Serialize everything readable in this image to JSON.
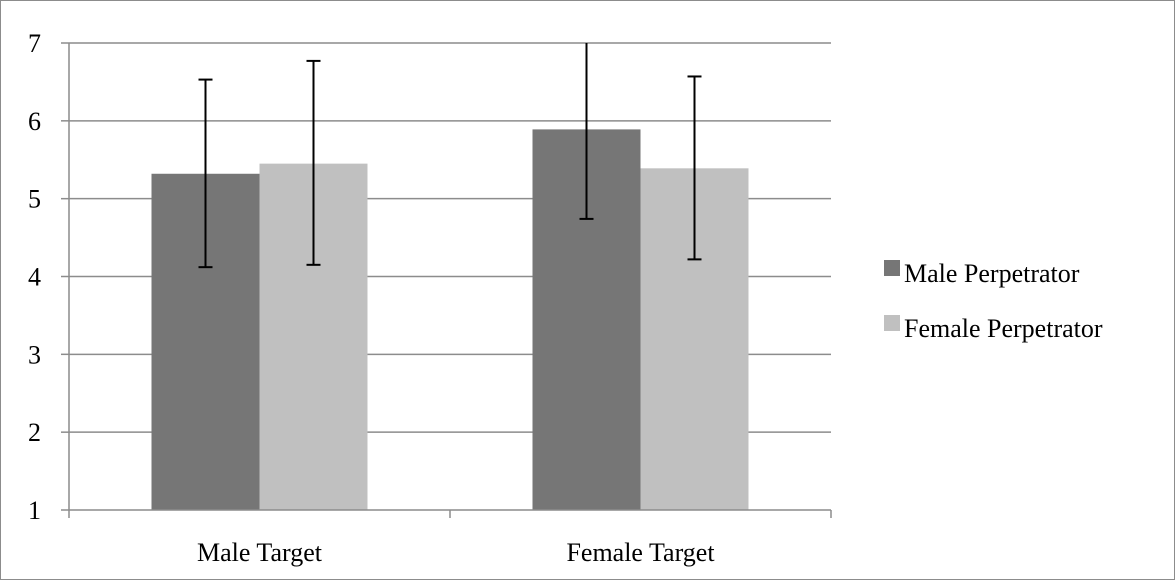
{
  "chart_data": {
    "type": "bar",
    "categories": [
      "Male Target",
      "Female Target"
    ],
    "series": [
      {
        "name": "Male Perpetrator",
        "color": "#767676",
        "values": [
          5.32,
          5.89
        ],
        "error_low": [
          4.12,
          4.74
        ],
        "error_high": [
          6.53,
          7.05
        ]
      },
      {
        "name": "Female Perpetrator",
        "color": "#c0c0c0",
        "values": [
          5.45,
          5.39
        ],
        "error_low": [
          4.15,
          4.22
        ],
        "error_high": [
          6.77,
          6.57
        ]
      }
    ],
    "title": "",
    "xlabel": "",
    "ylabel": "",
    "ylim": [
      1,
      7
    ],
    "yticks": [
      "1",
      "2",
      "3",
      "4",
      "5",
      "6",
      "7"
    ],
    "grid": true,
    "legend_position": "right"
  }
}
